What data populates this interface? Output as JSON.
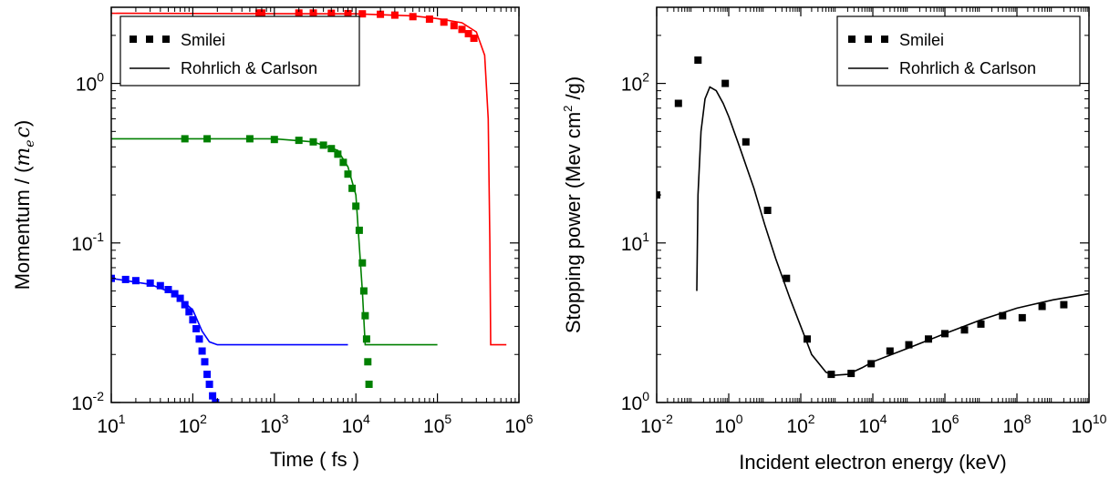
{
  "chart_data": [
    {
      "type": "line",
      "xlabel": "Time ( fs )",
      "ylabel": "Momentum / (m_e c)",
      "ylabel_text": "Momentum / (",
      "ylabel_math_m": "m",
      "ylabel_math_sub": "e",
      "ylabel_math_c": "c",
      "ylabel_close": ")",
      "xscale": "log",
      "yscale": "log",
      "xlim": [
        10,
        1000000
      ],
      "ylim": [
        0.01,
        3
      ],
      "grid": false,
      "legend_position": "top-left",
      "legend": {
        "markers_label": "Smilei",
        "line_label": "Rohrlich & Carlson"
      },
      "x_ticks": [
        {
          "value": 10,
          "base": "10",
          "exp": "1"
        },
        {
          "value": 100,
          "base": "10",
          "exp": "2"
        },
        {
          "value": 1000,
          "base": "10",
          "exp": "3"
        },
        {
          "value": 10000,
          "base": "10",
          "exp": "4"
        },
        {
          "value": 100000,
          "base": "10",
          "exp": "5"
        },
        {
          "value": 1000000,
          "base": "10",
          "exp": "6"
        }
      ],
      "y_ticks": [
        {
          "value": 0.01,
          "base": "10",
          "exp": "-2"
        },
        {
          "value": 0.1,
          "base": "10",
          "exp": "-1"
        },
        {
          "value": 1,
          "base": "10",
          "exp": "0"
        }
      ],
      "series": [
        {
          "color": "#ff0000",
          "line": [
            [
              10,
              2.75
            ],
            [
              10000,
              2.73
            ],
            [
              50000,
              2.65
            ],
            [
              100000,
              2.55
            ],
            [
              200000,
              2.4
            ],
            [
              300000,
              2.1
            ],
            [
              380000,
              1.5
            ],
            [
              420000,
              0.6
            ],
            [
              440000,
              0.1
            ],
            [
              450000,
              0.023
            ],
            [
              700000,
              0.023
            ]
          ],
          "markers": [
            [
              650,
              2.76
            ],
            [
              700,
              2.76
            ],
            [
              2000,
              2.76
            ],
            [
              3000,
              2.76
            ],
            [
              5000,
              2.75
            ],
            [
              8000,
              2.74
            ],
            [
              12000,
              2.73
            ],
            [
              20000,
              2.71
            ],
            [
              30000,
              2.68
            ],
            [
              50000,
              2.62
            ],
            [
              80000,
              2.53
            ],
            [
              120000,
              2.42
            ],
            [
              160000,
              2.3
            ],
            [
              200000,
              2.18
            ],
            [
              240000,
              2.05
            ],
            [
              280000,
              1.92
            ]
          ]
        },
        {
          "color": "#008000",
          "line": [
            [
              10,
              0.45
            ],
            [
              1000,
              0.45
            ],
            [
              3000,
              0.43
            ],
            [
              6000,
              0.38
            ],
            [
              8000,
              0.3
            ],
            [
              10000,
              0.2
            ],
            [
              12000,
              0.05
            ],
            [
              13000,
              0.023
            ],
            [
              100000,
              0.023
            ]
          ],
          "markers": [
            [
              80,
              0.45
            ],
            [
              150,
              0.45
            ],
            [
              500,
              0.45
            ],
            [
              1000,
              0.445
            ],
            [
              2000,
              0.44
            ],
            [
              3000,
              0.43
            ],
            [
              4000,
              0.41
            ],
            [
              5000,
              0.39
            ],
            [
              6000,
              0.36
            ],
            [
              7000,
              0.32
            ],
            [
              8000,
              0.27
            ],
            [
              9000,
              0.22
            ],
            [
              10000,
              0.17
            ],
            [
              11000,
              0.12
            ],
            [
              12000,
              0.075
            ],
            [
              12500,
              0.05
            ],
            [
              13000,
              0.035
            ],
            [
              13500,
              0.025
            ],
            [
              14000,
              0.018
            ],
            [
              14500,
              0.013
            ]
          ]
        },
        {
          "color": "#0000ff",
          "line": [
            [
              10,
              0.06
            ],
            [
              30,
              0.055
            ],
            [
              60,
              0.048
            ],
            [
              100,
              0.038
            ],
            [
              130,
              0.028
            ],
            [
              160,
              0.024
            ],
            [
              200,
              0.023
            ],
            [
              8000,
              0.023
            ]
          ],
          "markers": [
            [
              10,
              0.06
            ],
            [
              15,
              0.059
            ],
            [
              20,
              0.058
            ],
            [
              30,
              0.056
            ],
            [
              40,
              0.054
            ],
            [
              50,
              0.051
            ],
            [
              60,
              0.048
            ],
            [
              70,
              0.045
            ],
            [
              80,
              0.041
            ],
            [
              90,
              0.037
            ],
            [
              100,
              0.033
            ],
            [
              110,
              0.029
            ],
            [
              120,
              0.025
            ],
            [
              130,
              0.021
            ],
            [
              140,
              0.018
            ],
            [
              150,
              0.015
            ],
            [
              160,
              0.013
            ],
            [
              175,
              0.011
            ],
            [
              190,
              0.01
            ]
          ]
        }
      ]
    },
    {
      "type": "line",
      "xlabel": "Incident electron energy (keV)",
      "ylabel": "Stopping power (Mev cm2 /g)",
      "ylabel_pre": "Stopping power (Mev cm",
      "ylabel_sup": "2",
      "ylabel_post": " /g)",
      "xscale": "log",
      "yscale": "log",
      "xlim": [
        0.01,
        10000000000
      ],
      "ylim": [
        1,
        300
      ],
      "grid": false,
      "legend_position": "top-right",
      "legend": {
        "markers_label": "Smilei",
        "line_label": "Rohrlich & Carlson"
      },
      "x_ticks": [
        {
          "value": 0.01,
          "base": "10",
          "exp": "-2"
        },
        {
          "value": 1,
          "base": "10",
          "exp": "0"
        },
        {
          "value": 100,
          "base": "10",
          "exp": "2"
        },
        {
          "value": 10000,
          "base": "10",
          "exp": "4"
        },
        {
          "value": 1000000,
          "base": "10",
          "exp": "6"
        },
        {
          "value": 100000000,
          "base": "10",
          "exp": "8"
        },
        {
          "value": 10000000000,
          "base": "10",
          "exp": "10"
        }
      ],
      "y_ticks": [
        {
          "value": 1,
          "base": "10",
          "exp": "0"
        },
        {
          "value": 10,
          "base": "10",
          "exp": "1"
        },
        {
          "value": 100,
          "base": "10",
          "exp": "2"
        }
      ],
      "series": [
        {
          "color": "#000000",
          "line": [
            [
              0.13,
              5
            ],
            [
              0.14,
              20
            ],
            [
              0.17,
              50
            ],
            [
              0.22,
              80
            ],
            [
              0.3,
              95
            ],
            [
              0.45,
              90
            ],
            [
              0.7,
              75
            ],
            [
              1,
              62
            ],
            [
              2,
              40
            ],
            [
              5,
              22
            ],
            [
              10,
              13
            ],
            [
              20,
              8
            ],
            [
              50,
              4.5
            ],
            [
              100,
              3
            ],
            [
              200,
              2
            ],
            [
              500,
              1.55
            ],
            [
              800,
              1.48
            ],
            [
              2000,
              1.5
            ],
            [
              5000,
              1.65
            ],
            [
              10000,
              1.8
            ],
            [
              100000,
              2.2
            ],
            [
              1000000,
              2.7
            ],
            [
              10000000,
              3.3
            ],
            [
              100000000,
              3.9
            ],
            [
              1000000000,
              4.4
            ],
            [
              10000000000,
              4.8
            ]
          ],
          "markers": [
            [
              0.01,
              20
            ],
            [
              0.04,
              75
            ],
            [
              0.14,
              140
            ],
            [
              0.8,
              100
            ],
            [
              3,
              43
            ],
            [
              12,
              16
            ],
            [
              40,
              6
            ],
            [
              150,
              2.5
            ],
            [
              700,
              1.5
            ],
            [
              2500,
              1.52
            ],
            [
              9000,
              1.75
            ],
            [
              30000,
              2.1
            ],
            [
              100000,
              2.3
            ],
            [
              350000,
              2.5
            ],
            [
              1000000,
              2.7
            ],
            [
              3500000,
              2.85
            ],
            [
              10000000,
              3.1
            ],
            [
              40000000,
              3.5
            ],
            [
              140000000,
              3.4
            ],
            [
              500000000,
              4.0
            ],
            [
              2000000000,
              4.1
            ]
          ]
        }
      ]
    }
  ]
}
